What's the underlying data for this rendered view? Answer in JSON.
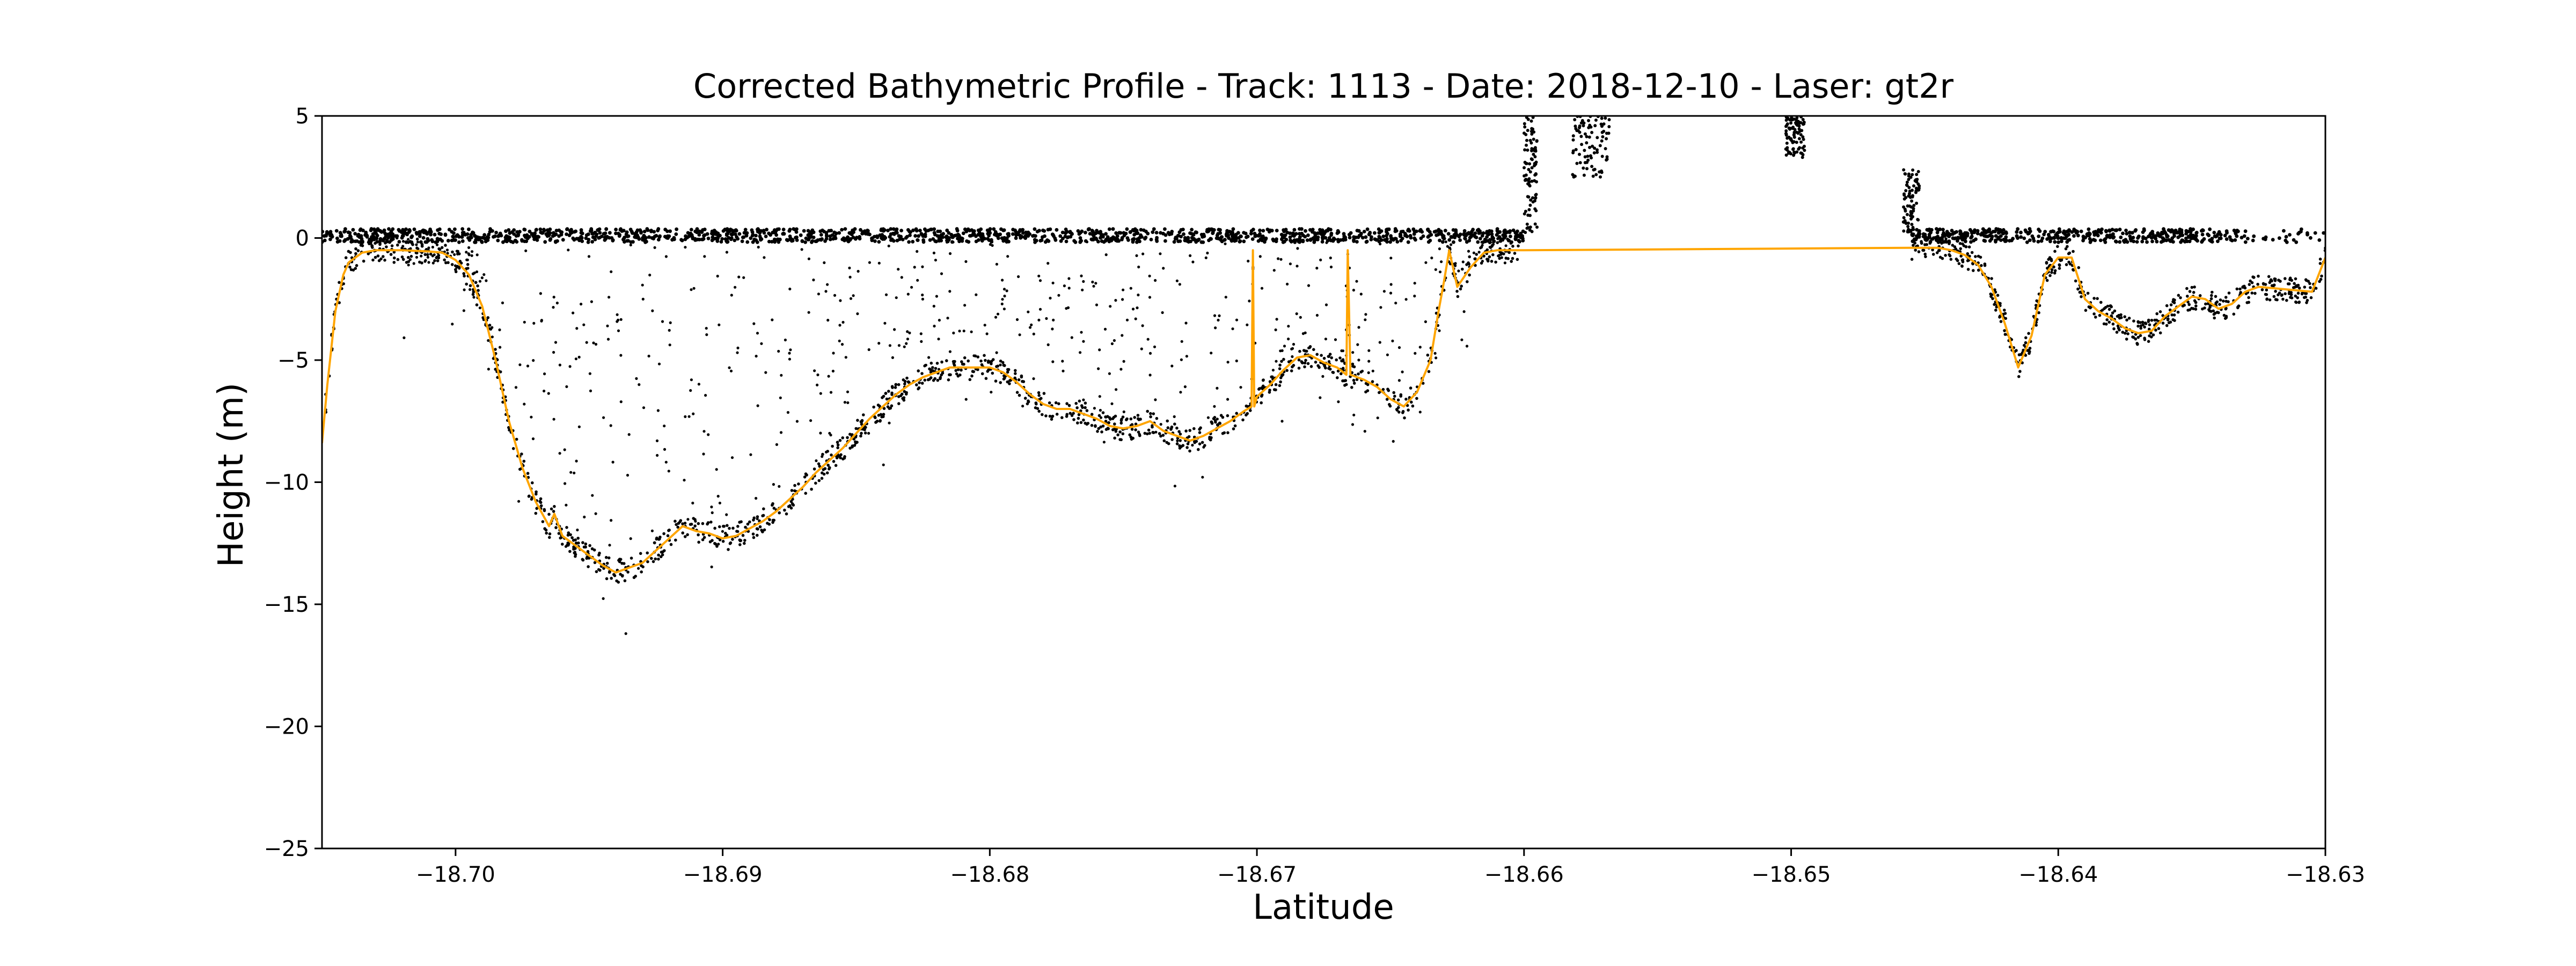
{
  "chart_data": {
    "type": "scatter",
    "title": "Corrected Bathymetric Profile - Track: 1113 - Date: 2018-12-10 - Laser: gt2r",
    "xlabel": "Latitude",
    "ylabel": "Height (m)",
    "xlim": [
      -18.705,
      -18.63
    ],
    "ylim": [
      -25,
      5
    ],
    "xticks": [
      -18.7,
      -18.69,
      -18.68,
      -18.67,
      -18.66,
      -18.65,
      -18.64,
      -18.63
    ],
    "xtick_labels": [
      "−18.70",
      "−18.69",
      "−18.68",
      "−18.67",
      "−18.66",
      "−18.65",
      "−18.64",
      "−18.63"
    ],
    "yticks": [
      5,
      0,
      -5,
      -10,
      -15,
      -20,
      -25
    ],
    "ytick_labels": [
      "5",
      "0",
      "−5",
      "−10",
      "−15",
      "−20",
      "−25"
    ],
    "grid": false,
    "legend": "none",
    "colors": {
      "photons": "#000000",
      "seafloor": "#ffa500"
    },
    "series": [
      {
        "kind": "line",
        "color": "#ffa500",
        "x": [
          -18.705,
          -18.7048,
          -18.7045,
          -18.7042,
          -18.704,
          -18.7035,
          -18.703,
          -18.702,
          -18.701,
          -18.7005,
          -18.7,
          -18.6995,
          -18.699,
          -18.6985,
          -18.698,
          -18.6975,
          -18.697,
          -18.6965,
          -18.6963,
          -18.696,
          -18.6955,
          -18.695,
          -18.6945,
          -18.694,
          -18.6935,
          -18.693,
          -18.6925,
          -18.692,
          -18.6915,
          -18.691,
          -18.6905,
          -18.69,
          -18.6895,
          -18.689,
          -18.6885,
          -18.688,
          -18.6875,
          -18.687,
          -18.6865,
          -18.686,
          -18.6855,
          -18.685,
          -18.6845,
          -18.684,
          -18.6835,
          -18.683,
          -18.6825,
          -18.682,
          -18.6815,
          -18.681,
          -18.6805,
          -18.68,
          -18.6795,
          -18.679,
          -18.6785,
          -18.678,
          -18.6775,
          -18.677,
          -18.6765,
          -18.676,
          -18.6755,
          -18.675,
          -18.6745,
          -18.674,
          -18.6735,
          -18.673,
          -18.6725,
          -18.672,
          -18.6715,
          -18.671,
          -18.6705,
          -18.6702,
          -18.67015,
          -18.6701,
          -18.67,
          -18.6695,
          -18.669,
          -18.6685,
          -18.668,
          -18.6675,
          -18.667,
          -18.66665,
          -18.6666,
          -18.6665,
          -18.666,
          -18.6655,
          -18.665,
          -18.6645,
          -18.664,
          -18.6635,
          -18.6632,
          -18.663,
          -18.6628,
          -18.6625,
          -18.662,
          -18.6615,
          -18.661,
          -18.6605,
          -18.66,
          -18.6455,
          -18.6445,
          -18.644,
          -18.6435,
          -18.643,
          -18.6425,
          -18.642,
          -18.6415,
          -18.641,
          -18.6405,
          -18.64,
          -18.6395,
          -18.639,
          -18.6385,
          -18.638,
          -18.6375,
          -18.637,
          -18.6365,
          -18.636,
          -18.6355,
          -18.635,
          -18.6345,
          -18.634,
          -18.6335,
          -18.633,
          -18.6325,
          -18.6305,
          -18.63
        ],
        "y": [
          -8.4,
          -6.0,
          -3.0,
          -1.5,
          -1.0,
          -0.6,
          -0.5,
          -0.5,
          -0.55,
          -0.6,
          -0.9,
          -1.5,
          -2.8,
          -5.0,
          -7.5,
          -9.4,
          -10.8,
          -11.8,
          -11.3,
          -12.2,
          -12.6,
          -13.0,
          -13.4,
          -13.7,
          -13.5,
          -13.3,
          -12.8,
          -12.3,
          -11.8,
          -12.0,
          -12.1,
          -12.3,
          -12.2,
          -11.9,
          -11.6,
          -11.2,
          -10.7,
          -10.2,
          -9.6,
          -9.1,
          -8.6,
          -8.0,
          -7.4,
          -6.9,
          -6.4,
          -6.0,
          -5.7,
          -5.5,
          -5.3,
          -5.3,
          -5.3,
          -5.3,
          -5.5,
          -5.9,
          -6.4,
          -6.8,
          -7.0,
          -7.0,
          -7.2,
          -7.4,
          -7.7,
          -7.8,
          -7.7,
          -7.5,
          -7.9,
          -8.1,
          -8.3,
          -8.1,
          -7.8,
          -7.5,
          -7.1,
          -6.9,
          -0.5,
          -6.9,
          -6.5,
          -6.0,
          -5.4,
          -4.9,
          -4.8,
          -5.1,
          -5.3,
          -5.6,
          -0.5,
          -5.6,
          -5.8,
          -6.1,
          -6.6,
          -6.9,
          -6.3,
          -5.0,
          -3.0,
          -1.8,
          -0.5,
          -2.0,
          -1.2,
          -0.6,
          -0.5,
          -0.5,
          -0.5,
          -0.4,
          -0.4,
          -0.5,
          -0.7,
          -1.1,
          -2.0,
          -3.5,
          -5.3,
          -4.0,
          -1.5,
          -0.8,
          -0.8,
          -2.5,
          -3.0,
          -3.3,
          -3.7,
          -3.9,
          -3.8,
          -3.2,
          -2.8,
          -2.4,
          -2.5,
          -2.9,
          -2.7,
          -2.2,
          -2.0,
          -2.2,
          -0.8
        ]
      }
    ]
  }
}
